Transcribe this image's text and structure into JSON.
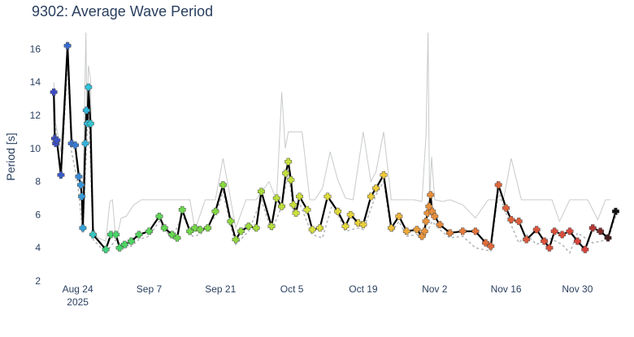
{
  "chart_data": {
    "type": "line",
    "title": "9302: Average Wave Period",
    "xlabel": "",
    "ylabel": "Period [s]",
    "ylim": [
      2,
      17
    ],
    "yticks": [
      2,
      4,
      6,
      8,
      10,
      12,
      14,
      16
    ],
    "xlim": [
      -6.0,
      107.5
    ],
    "xticks": [
      {
        "day": 0,
        "label": "Aug 24",
        "sublabel": "2025"
      },
      {
        "day": 14,
        "label": "Sep 7"
      },
      {
        "day": 28,
        "label": "Sep 21"
      },
      {
        "day": 42,
        "label": "Oct 5"
      },
      {
        "day": 56,
        "label": "Oct 19"
      },
      {
        "day": 70,
        "label": "Nov 2"
      },
      {
        "day": 84,
        "label": "Nov 16"
      },
      {
        "day": 98,
        "label": "Nov 30"
      }
    ],
    "colors": {
      "main": "#000000",
      "lower_bound": "#b4b8bb",
      "upper_bound": "#c7cbc9",
      "marker_stroke": "#4a4a4a"
    },
    "series": [
      {
        "name": "Average Wave Period",
        "style": "solid",
        "x": [
          -4.7,
          -4.5,
          -4.3,
          -4.1,
          -3.3,
          -2.0,
          -1.2,
          -0.5,
          0.2,
          0.6,
          0.8,
          1.0,
          1.5,
          1.7,
          1.9,
          2.1,
          2.5,
          3.0,
          5.5,
          6.5,
          7.5,
          8.2,
          9.2,
          10.5,
          12.0,
          14.0,
          16.0,
          17.0,
          18.5,
          19.5,
          20.5,
          22.0,
          23.0,
          24.0,
          25.5,
          27.0,
          28.5,
          30.0,
          31.0,
          32.0,
          33.5,
          35.0,
          36.0,
          38.0,
          39.0,
          40.0,
          40.8,
          41.3,
          41.8,
          42.3,
          42.8,
          43.5,
          45.0,
          46.0,
          47.5,
          49.0,
          51.0,
          52.5,
          53.5,
          55.0,
          56.0,
          57.5,
          58.5,
          60.0,
          61.5,
          63.0,
          64.5,
          66.5,
          67.5,
          68.0,
          68.3,
          68.6,
          68.9,
          69.2,
          69.5,
          70.0,
          71.0,
          73.0,
          75.5,
          78.0,
          80.0,
          81.0,
          82.5,
          84.0,
          85.0,
          86.5,
          88.0,
          90.0,
          91.5,
          92.5,
          93.5,
          95.0,
          96.5,
          98.0,
          99.5,
          101.0,
          102.5,
          104.0,
          105.5
        ],
        "y": [
          13.4,
          10.6,
          10.3,
          10.5,
          8.4,
          16.2,
          10.3,
          10.2,
          8.3,
          7.8,
          7.1,
          5.2,
          10.3,
          12.3,
          11.5,
          13.7,
          11.5,
          4.8,
          3.9,
          4.8,
          4.8,
          4.0,
          4.2,
          4.4,
          4.8,
          5.0,
          5.9,
          5.2,
          4.8,
          4.6,
          6.3,
          5.0,
          5.2,
          5.1,
          5.2,
          6.2,
          7.8,
          5.6,
          4.5,
          5.0,
          5.3,
          5.2,
          7.4,
          5.3,
          7.0,
          6.5,
          8.5,
          9.2,
          8.1,
          6.6,
          6.1,
          7.1,
          6.3,
          5.1,
          5.2,
          7.1,
          6.2,
          5.3,
          6.0,
          5.5,
          5.4,
          7.1,
          7.6,
          8.4,
          5.2,
          5.9,
          5.0,
          5.1,
          4.7,
          5.0,
          5.6,
          6.1,
          6.5,
          7.2,
          6.2,
          5.9,
          5.4,
          4.9,
          5.0,
          5.0,
          4.3,
          4.1,
          7.8,
          6.4,
          5.7,
          5.6,
          4.5,
          5.1,
          4.4,
          4.0,
          5.0,
          4.8,
          5.0,
          4.4,
          3.9,
          5.2,
          5.0,
          4.6,
          6.2
        ]
      },
      {
        "name": "Lower bound",
        "style": "dash",
        "x": [
          -4.7,
          -3.3,
          -2.0,
          -1.2,
          0.0,
          1.0,
          2.1,
          3.0,
          5.5,
          7.5,
          9.0,
          10.5,
          12.0,
          14.0,
          16.0,
          18.5,
          20.5,
          22.5,
          24.0,
          27.0,
          28.5,
          30.0,
          31.0,
          33.5,
          36.0,
          38.0,
          40.0,
          41.3,
          42.3,
          43.5,
          46.0,
          48.0,
          50.0,
          52.5,
          55.0,
          56.0,
          58.5,
          60.0,
          61.5,
          63.0,
          64.5,
          66.5,
          68.0,
          69.5,
          71.0,
          73.0,
          75.5,
          78.0,
          81.0,
          82.5,
          84.0,
          86.5,
          88.0,
          90.0,
          92.5,
          95.0,
          96.5,
          98.0,
          101.0,
          104.0,
          105.5
        ],
        "y": [
          12.4,
          8.1,
          15.2,
          9.8,
          7.9,
          4.9,
          12.8,
          4.5,
          3.7,
          4.5,
          4.0,
          4.1,
          4.5,
          4.7,
          5.6,
          4.5,
          6.0,
          4.7,
          4.8,
          5.9,
          7.4,
          5.3,
          4.2,
          5.0,
          6.9,
          5.0,
          6.5,
          8.7,
          6.2,
          6.7,
          4.8,
          4.6,
          6.7,
          5.0,
          5.2,
          5.1,
          7.2,
          8.0,
          4.9,
          5.6,
          4.7,
          4.8,
          4.6,
          5.6,
          5.1,
          4.6,
          4.7,
          4.0,
          3.8,
          7.4,
          6.1,
          4.3,
          4.8,
          4.2,
          4.6,
          4.2,
          3.7,
          4.9,
          4.3,
          4.5,
          5.9
        ]
      },
      {
        "name": "Upper bound",
        "style": "solid",
        "x": [
          -4.7,
          -4.3,
          -3.3,
          -2.0,
          -1.2,
          0.0,
          1.0,
          1.6,
          1.8,
          2.1,
          2.5,
          3.0,
          4.0,
          5.5,
          6.3,
          6.8,
          7.5,
          8.5,
          9.5,
          11.0,
          12.5,
          14.0,
          16.0,
          18.0,
          22.0,
          23.0,
          25.0,
          27.0,
          28.5,
          30.0,
          31.0,
          33.0,
          35.0,
          37.5,
          39.0,
          40.0,
          40.7,
          41.3,
          42.3,
          44.0,
          45.5,
          46.5,
          48.0,
          49.5,
          51.0,
          52.5,
          54.0,
          56.0,
          57.5,
          58.5,
          60.0,
          61.5,
          63.0,
          64.5,
          66.0,
          67.5,
          68.3,
          68.7,
          69.0,
          69.4,
          70.0,
          71.5,
          73.0,
          75.5,
          78.0,
          80.5,
          82.0,
          83.5,
          85.0,
          87.0,
          89.0,
          91.0,
          93.0,
          94.5,
          96.5,
          98.0,
          100.0,
          102.0,
          103.5,
          104.5
        ],
        "y": [
          14.0,
          11.5,
          9.8,
          16.5,
          10.8,
          9.3,
          6.9,
          17.0,
          11.8,
          15.0,
          14.2,
          5.2,
          4.6,
          4.4,
          6.8,
          6.9,
          4.4,
          5.8,
          5.9,
          6.6,
          6.9,
          6.9,
          6.9,
          6.9,
          6.9,
          5.1,
          6.9,
          6.9,
          9.4,
          6.9,
          5.2,
          6.9,
          6.9,
          8.0,
          6.9,
          13.4,
          10.0,
          11.0,
          11.0,
          11.0,
          6.9,
          6.9,
          7.6,
          9.8,
          8.1,
          7.0,
          6.9,
          11.0,
          8.0,
          8.6,
          11.0,
          6.9,
          6.9,
          6.9,
          6.9,
          6.8,
          10.8,
          17.0,
          6.9,
          9.5,
          6.9,
          6.8,
          6.9,
          6.6,
          5.8,
          6.9,
          6.9,
          6.9,
          9.4,
          6.9,
          6.9,
          6.9,
          6.9,
          5.6,
          6.9,
          6.9,
          6.9,
          5.7,
          6.9,
          6.9
        ]
      }
    ],
    "colorscale": [
      {
        "day": -5,
        "color": "#3b46c4"
      },
      {
        "day": 0,
        "color": "#3a82d6"
      },
      {
        "day": 2,
        "color": "#2fc4e0"
      },
      {
        "day": 6,
        "color": "#42d46b"
      },
      {
        "day": 30,
        "color": "#8bd93c"
      },
      {
        "day": 45,
        "color": "#d7e23a"
      },
      {
        "day": 60,
        "color": "#f0c93a"
      },
      {
        "day": 68,
        "color": "#e8943c"
      },
      {
        "day": 82,
        "color": "#e0663a"
      },
      {
        "day": 100,
        "color": "#d8403c"
      },
      {
        "day": 105.5,
        "color": "#111111"
      }
    ]
  }
}
